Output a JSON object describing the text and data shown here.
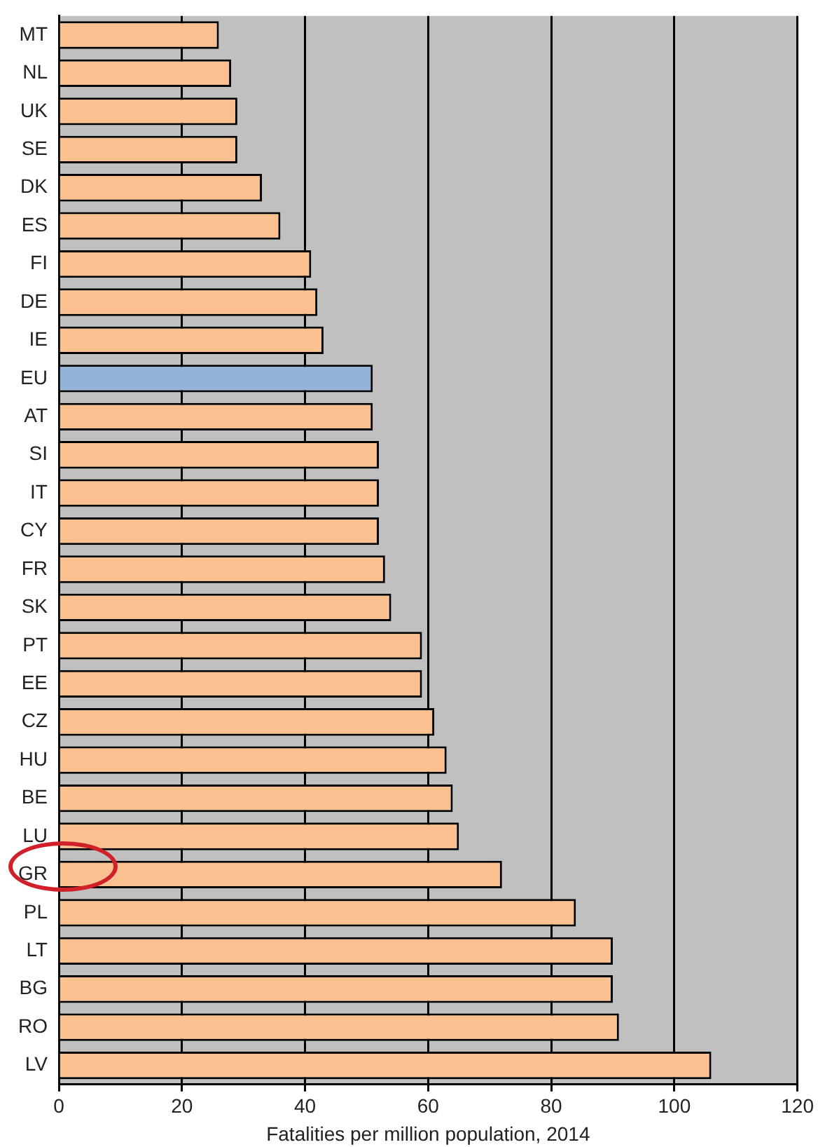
{
  "chart_data": {
    "type": "bar",
    "orientation": "horizontal",
    "xlabel": "Fatalities per million population, 2014",
    "categories": [
      "MT",
      "NL",
      "UK",
      "SE",
      "DK",
      "ES",
      "FI",
      "DE",
      "IE",
      "EU",
      "AT",
      "SI",
      "IT",
      "CY",
      "FR",
      "SK",
      "PT",
      "EE",
      "CZ",
      "HU",
      "BE",
      "LU",
      "GR",
      "PL",
      "LT",
      "BG",
      "RO",
      "LV"
    ],
    "values": [
      26,
      28,
      29,
      29,
      33,
      36,
      41,
      42,
      43,
      51,
      51,
      52,
      52,
      52,
      53,
      54,
      59,
      59,
      61,
      63,
      64,
      65,
      72,
      84,
      90,
      90,
      91,
      106
    ],
    "colors": [
      "#fac090",
      "#fac090",
      "#fac090",
      "#fac090",
      "#fac090",
      "#fac090",
      "#fac090",
      "#fac090",
      "#fac090",
      "#95b3d7",
      "#fac090",
      "#fac090",
      "#fac090",
      "#fac090",
      "#fac090",
      "#fac090",
      "#fac090",
      "#fac090",
      "#fac090",
      "#fac090",
      "#fac090",
      "#fac090",
      "#fac090",
      "#fac090",
      "#fac090",
      "#fac090",
      "#fac090",
      "#fac090"
    ],
    "xlim": [
      0,
      120
    ],
    "xticks": [
      0,
      20,
      40,
      60,
      80,
      100,
      120
    ],
    "grid": "x",
    "legend": false
  }
}
